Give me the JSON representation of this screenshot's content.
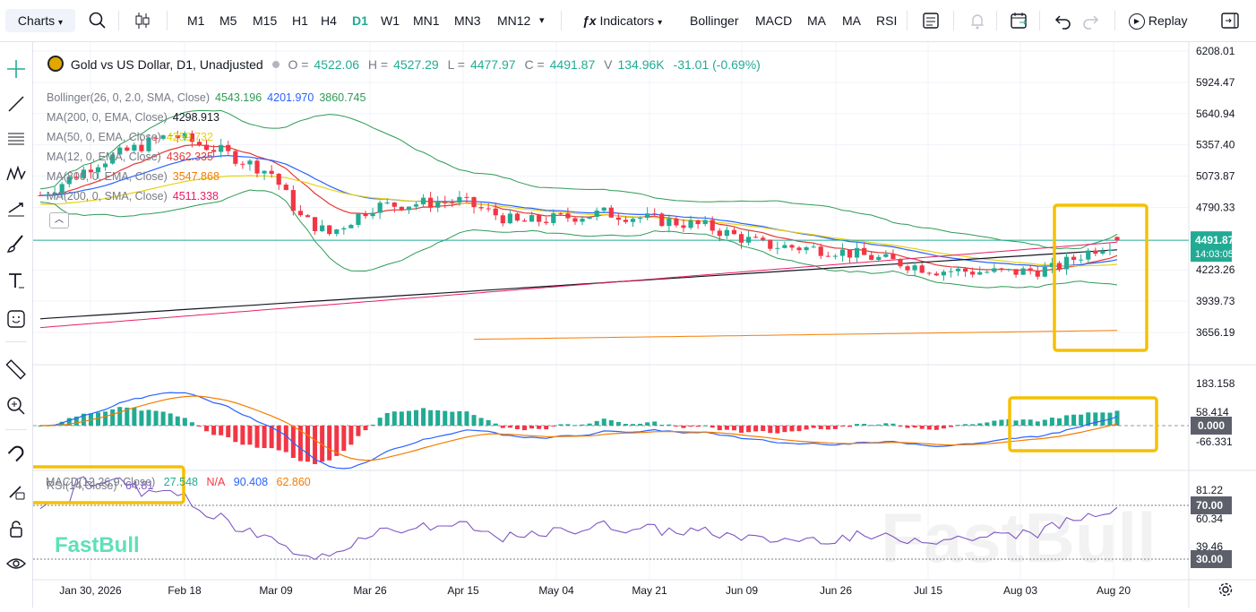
{
  "toolbar": {
    "charts_label": "Charts",
    "timeframes": [
      "M1",
      "M5",
      "M15",
      "H1",
      "H4",
      "D1",
      "W1",
      "MN1",
      "MN3",
      "MN12"
    ],
    "active_timeframe": "D1",
    "indicators_label": "Indicators",
    "quick_indicators": [
      "Bollinger",
      "MACD",
      "MA",
      "MA",
      "RSI"
    ],
    "replay_label": "Replay"
  },
  "symbol": {
    "name": "Gold vs US Dollar, D1, Unadjusted",
    "open": "4522.06",
    "high": "4527.29",
    "low": "4477.97",
    "close": "4491.87",
    "volume": "134.96K",
    "change": "-31.01 (-0.69%)"
  },
  "indicators": [
    {
      "label": "Bollinger(26, 0, 2.0, SMA, Close)",
      "values": [
        {
          "v": "4543.196",
          "color": "#2e9b55"
        },
        {
          "v": "4201.970",
          "color": "#2962ff"
        },
        {
          "v": "3860.745",
          "color": "#2e9b55"
        }
      ]
    },
    {
      "label": "MA(200, 0, EMA, Close)",
      "values": [
        {
          "v": "4298.913",
          "color": "#131722"
        }
      ]
    },
    {
      "label": "MA(50, 0, EMA, Close)",
      "values": [
        {
          "v": "4259.732",
          "color": "#e5d215"
        }
      ]
    },
    {
      "label": "MA(12, 0, EMA, Close)",
      "values": [
        {
          "v": "4362.335",
          "color": "#e53935"
        }
      ]
    },
    {
      "label": "MA(800, 0, EMA, Close)",
      "values": [
        {
          "v": "3547.868",
          "color": "#f57c00"
        }
      ]
    },
    {
      "label": "MA(200, 0, SMA, Close)",
      "values": [
        {
          "v": "4511.338",
          "color": "#e91e63"
        }
      ]
    }
  ],
  "macd": {
    "label": "MACD(12,26,9,Close)",
    "v1": "27.548",
    "v2": "N/A",
    "v3": "90.408",
    "v4": "62.860"
  },
  "rsi": {
    "label": "RSI(14,Close)",
    "value": "64.81"
  },
  "price_axis": [
    "6208.01",
    "5924.47",
    "5640.94",
    "5357.40",
    "5073.87",
    "4790.33",
    "4223.26",
    "3939.73",
    "3656.19"
  ],
  "current_price": "4491.87",
  "countdown": "14:03:05",
  "macd_axis": [
    "183.158",
    "58.414",
    "0.000",
    "-66.331"
  ],
  "rsi_axis": [
    "81.22",
    "70.00",
    "60.34",
    "39.46",
    "30.00"
  ],
  "date_axis": [
    "Jan 30, 2026",
    "Feb 18",
    "Mar 09",
    "Mar 26",
    "Apr 15",
    "May 04",
    "May 21",
    "Jun 09",
    "Jun 26",
    "Jul 15",
    "Aug 03",
    "Aug 20"
  ],
  "watermark": "FastBull",
  "brand_logo": "FastBull",
  "colors": {
    "up": "#22ab94",
    "down": "#f23645",
    "accent": "#22ab94",
    "highlight": "#f5c000"
  }
}
